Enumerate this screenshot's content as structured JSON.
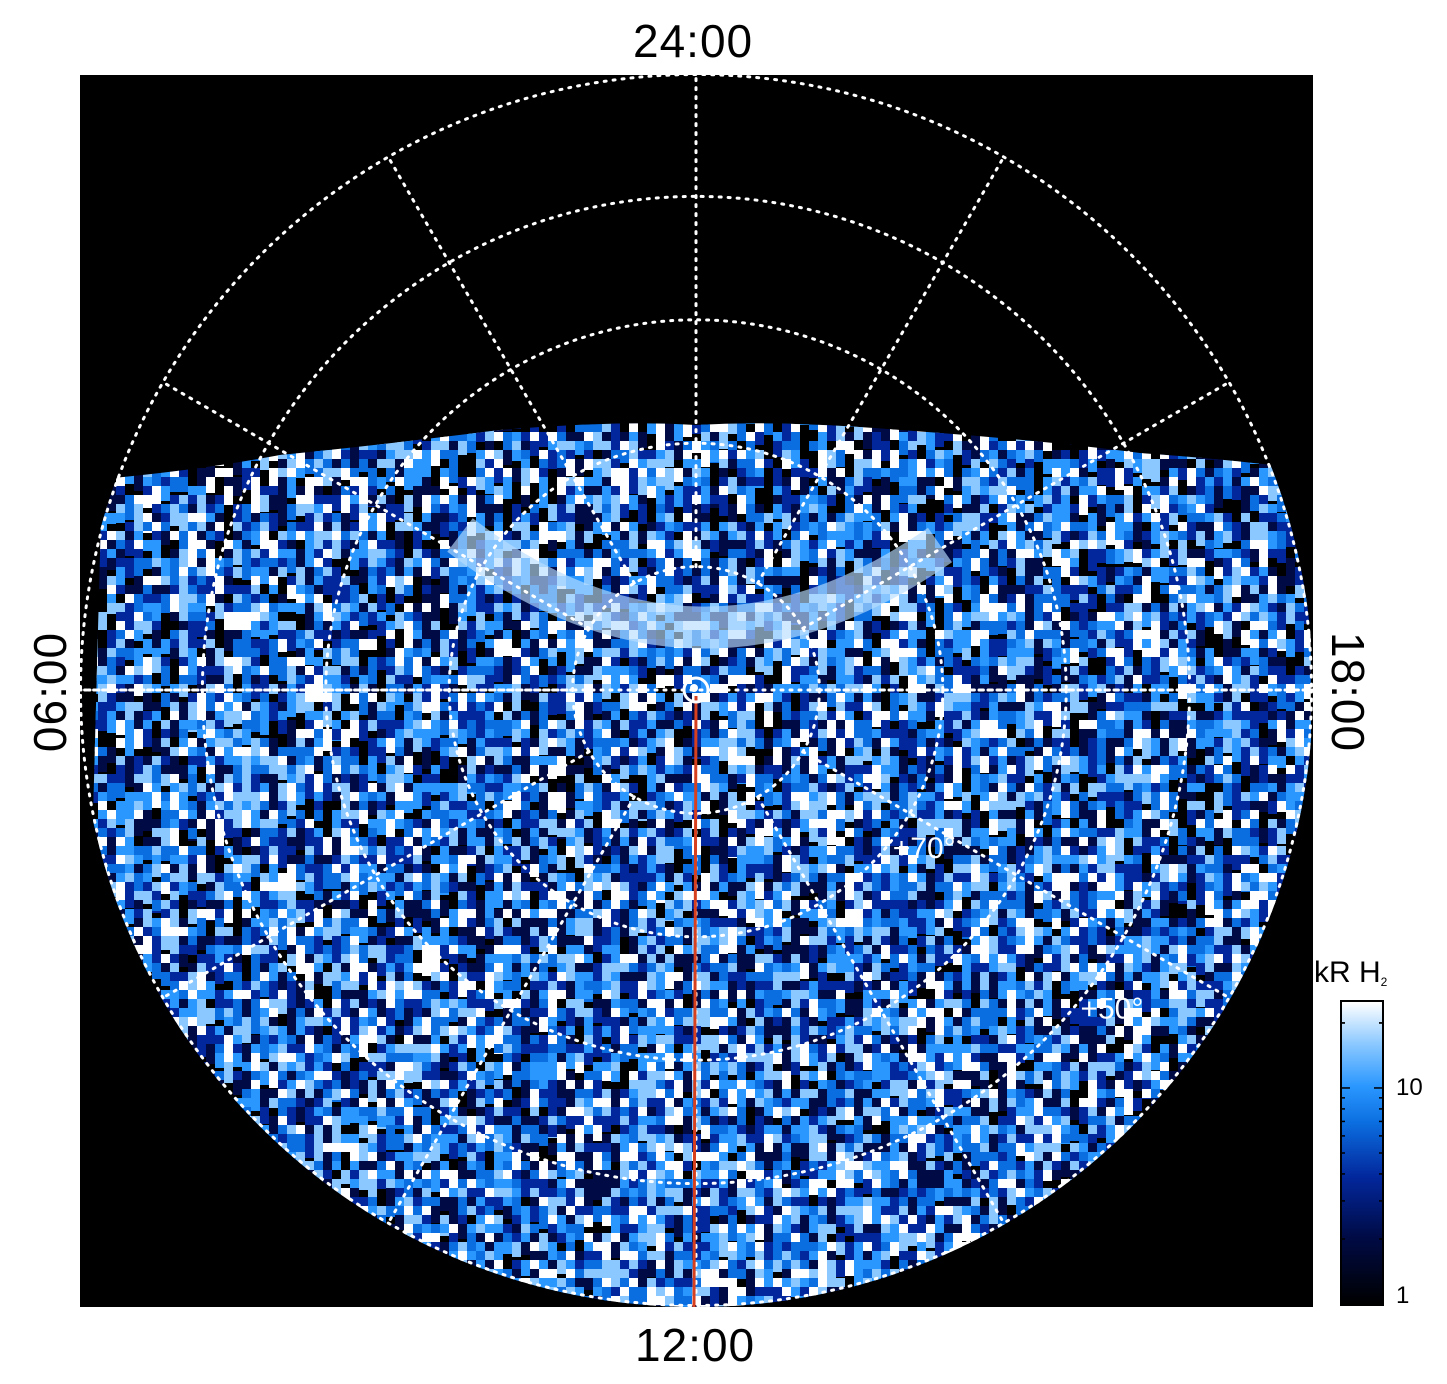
{
  "chart_data": {
    "type": "heatmap",
    "projection": "polar",
    "title": "",
    "axes": {
      "top_label": "24:00",
      "bottom_label": "12:00",
      "left_label": "06:00",
      "right_label": "18:00"
    },
    "meridians_local_time_hours": [
      0,
      2,
      4,
      6,
      8,
      10,
      12,
      14,
      16,
      18,
      20,
      22
    ],
    "latitude_circles_deg": [
      80,
      70,
      60,
      50
    ],
    "latitude_labels": [
      {
        "deg": 70,
        "text": "+70°"
      },
      {
        "deg": 50,
        "text": "+50°"
      }
    ],
    "outer_latitude_deg": 40,
    "grid": true,
    "grid_style": "dotted white",
    "field_of_view_edge_latitude_nightside_deg": 60,
    "central_meridian_line": {
      "local_time": "12:00",
      "color": "#d7401f"
    },
    "pole_marker": true,
    "colorbar": {
      "title": "kR H",
      "title_subscript": "2",
      "scale": "log",
      "range": [
        1,
        25
      ],
      "tick_labels": [
        "10",
        "1"
      ],
      "tick_values": [
        10,
        1
      ],
      "colors": [
        "#000000",
        "#000b45",
        "#02279c",
        "#0b6ee0",
        "#2a97ff",
        "#8ac8ff",
        "#ffffff"
      ],
      "position": "right"
    }
  }
}
